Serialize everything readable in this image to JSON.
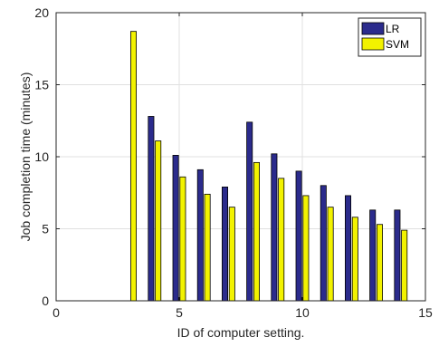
{
  "chart_data": {
    "type": "bar",
    "title": "",
    "xlabel": "ID of computer setting.",
    "ylabel": "Job completion time (minutes)",
    "xlim": [
      0,
      15
    ],
    "ylim": [
      0,
      20
    ],
    "xticks": [
      0,
      5,
      10,
      15
    ],
    "yticks": [
      0,
      5,
      10,
      15,
      20
    ],
    "grid": true,
    "legend_position": "top-right",
    "x": [
      1,
      2,
      3,
      4,
      5,
      6,
      7,
      8,
      9,
      10,
      11,
      12,
      13,
      14
    ],
    "series": [
      {
        "name": "LR",
        "color": "#2b2b8c",
        "values": [
          0,
          0,
          0,
          12.8,
          10.1,
          9.1,
          7.9,
          12.4,
          10.2,
          9.0,
          8.0,
          7.3,
          6.3,
          6.3
        ]
      },
      {
        "name": "SVM",
        "color": "#f2f200",
        "values": [
          0,
          0,
          18.7,
          11.1,
          8.6,
          7.4,
          6.5,
          9.6,
          8.5,
          7.3,
          6.5,
          5.8,
          5.3,
          4.9
        ]
      }
    ]
  }
}
